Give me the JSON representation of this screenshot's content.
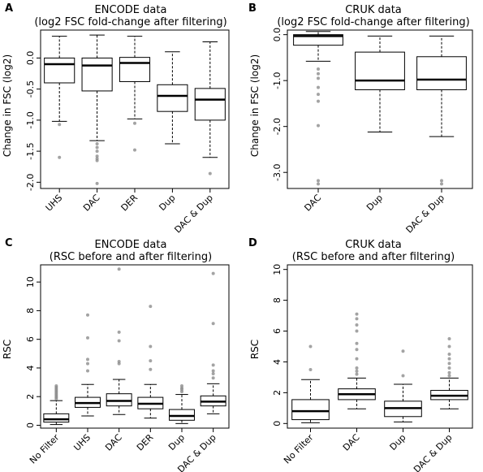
{
  "chart_data": [
    {
      "panel": "A",
      "type": "boxplot",
      "title": "ENCODE data",
      "subtitle": "(log2 FSC fold-change after filtering)",
      "ylabel": "Change in FSC (log2)",
      "xlabel": "",
      "ylim": [
        -2.1,
        0.45
      ],
      "yticks": [
        -2.0,
        -1.5,
        -1.0,
        -0.5,
        0.0
      ],
      "ytick_labels": [
        "-2.0",
        "-1.5",
        "-1.0",
        "-0.5",
        "0.0"
      ],
      "categories": [
        "UHS",
        "DAC",
        "DER",
        "Dup",
        "DAC & Dup"
      ],
      "boxes": [
        {
          "whisker_low": -1.02,
          "q1": -0.4,
          "median": -0.1,
          "q3": 0.0,
          "whisker_high": 0.35,
          "outliers": [
            -1.07,
            -1.6
          ]
        },
        {
          "whisker_low": -1.33,
          "q1": -0.53,
          "median": -0.12,
          "q3": 0.0,
          "whisker_high": 0.37,
          "outliers": [
            -1.38,
            -1.44,
            -1.5,
            -1.58,
            -1.62,
            -1.65,
            -2.02
          ]
        },
        {
          "whisker_low": -0.98,
          "q1": -0.38,
          "median": -0.08,
          "q3": 0.01,
          "whisker_high": 0.35,
          "outliers": [
            -1.05,
            -1.48
          ]
        },
        {
          "whisker_low": -1.38,
          "q1": -0.86,
          "median": -0.61,
          "q3": -0.43,
          "whisker_high": 0.1,
          "outliers": []
        },
        {
          "whisker_low": -1.6,
          "q1": -1.0,
          "median": -0.67,
          "q3": -0.49,
          "whisker_high": 0.26,
          "outliers": [
            -1.86
          ]
        }
      ]
    },
    {
      "panel": "B",
      "type": "boxplot",
      "title": "CRUK data",
      "subtitle": "(log2 FSC fold-change after filtering)",
      "ylabel": "Change in FSC (log2)",
      "xlabel": "",
      "ylim": [
        -3.35,
        0.1
      ],
      "yticks": [
        -3.0,
        -2.0,
        -1.0,
        0.0
      ],
      "ytick_labels": [
        "-3.0",
        "-2.0",
        "-1.0",
        "0.0"
      ],
      "categories": [
        "DAC",
        "Dup",
        "DAC & Dup"
      ],
      "boxes": [
        {
          "whisker_low": -0.58,
          "q1": -0.23,
          "median": -0.03,
          "q3": 0.0,
          "whisker_high": 0.07,
          "outliers": [
            -0.75,
            -0.85,
            -0.95,
            -1.15,
            -1.3,
            -1.45,
            -1.98,
            -3.18,
            -3.25
          ]
        },
        {
          "whisker_low": -2.12,
          "q1": -1.2,
          "median": -1.0,
          "q3": -0.38,
          "whisker_high": -0.03,
          "outliers": []
        },
        {
          "whisker_low": -2.22,
          "q1": -1.2,
          "median": -0.98,
          "q3": -0.48,
          "whisker_high": -0.03,
          "outliers": [
            -3.18,
            -3.25
          ]
        }
      ]
    },
    {
      "panel": "C",
      "type": "boxplot",
      "title": "ENCODE data",
      "subtitle": "(RSC before and after filtering)",
      "ylabel": "RSC",
      "xlabel": "",
      "ylim": [
        -0.2,
        11.2
      ],
      "yticks": [
        0,
        2,
        4,
        6,
        8,
        10
      ],
      "ytick_labels": [
        "0",
        "2",
        "4",
        "6",
        "8",
        "10"
      ],
      "categories": [
        "No Filter",
        "UHS",
        "DAC",
        "DER",
        "Dup",
        "DAC & Dup"
      ],
      "boxes": [
        {
          "whisker_low": 0.05,
          "q1": 0.22,
          "median": 0.42,
          "q3": 0.8,
          "whisker_high": 1.72,
          "outliers": [
            1.85,
            1.95,
            2.05,
            2.15,
            2.25,
            2.35,
            2.45,
            2.55,
            2.65,
            2.75
          ]
        },
        {
          "whisker_low": 0.65,
          "q1": 1.25,
          "median": 1.55,
          "q3": 1.95,
          "whisker_high": 2.85,
          "outliers": [
            3.8,
            4.3,
            4.6,
            6.1,
            7.7
          ]
        },
        {
          "whisker_low": 0.75,
          "q1": 1.35,
          "median": 1.7,
          "q3": 2.2,
          "whisker_high": 3.2,
          "outliers": [
            4.3,
            4.45,
            5.9,
            6.5,
            10.9
          ]
        },
        {
          "whisker_low": 0.5,
          "q1": 1.15,
          "median": 1.5,
          "q3": 1.95,
          "whisker_high": 2.85,
          "outliers": [
            3.9,
            4.5,
            5.5,
            8.3
          ]
        },
        {
          "whisker_low": 0.12,
          "q1": 0.35,
          "median": 0.65,
          "q3": 1.1,
          "whisker_high": 2.15,
          "outliers": [
            2.35,
            2.5,
            2.6,
            2.75
          ]
        },
        {
          "whisker_low": 0.8,
          "q1": 1.35,
          "median": 1.65,
          "q3": 2.05,
          "whisker_high": 2.9,
          "outliers": [
            3.3,
            3.6,
            3.8,
            4.2,
            7.1,
            10.6
          ]
        }
      ]
    },
    {
      "panel": "D",
      "type": "boxplot",
      "title": "CRUK data",
      "subtitle": "(RSC before and after filtering)",
      "ylabel": "RSC",
      "xlabel": "",
      "ylim": [
        -0.3,
        10.3
      ],
      "yticks": [
        0,
        2,
        4,
        6,
        8,
        10
      ],
      "ytick_labels": [
        "0",
        "2",
        "4",
        "6",
        "8",
        "10"
      ],
      "categories": [
        "No Filter",
        "DAC",
        "Dup",
        "DAC & Dup"
      ],
      "boxes": [
        {
          "whisker_low": 0.05,
          "q1": 0.25,
          "median": 0.8,
          "q3": 1.55,
          "whisker_high": 2.85,
          "outliers": [
            3.5,
            5.0
          ]
        },
        {
          "whisker_low": 0.95,
          "q1": 1.55,
          "median": 1.9,
          "q3": 2.25,
          "whisker_high": 2.95,
          "outliers": [
            3.2,
            3.4,
            3.6,
            4.2,
            4.8,
            5.2,
            6.0,
            6.4,
            6.8,
            7.1
          ]
        },
        {
          "whisker_low": 0.1,
          "q1": 0.45,
          "median": 1.0,
          "q3": 1.45,
          "whisker_high": 2.55,
          "outliers": [
            3.1,
            4.7
          ]
        },
        {
          "whisker_low": 0.95,
          "q1": 1.55,
          "median": 1.8,
          "q3": 2.15,
          "whisker_high": 2.95,
          "outliers": [
            3.1,
            3.3,
            3.6,
            3.9,
            4.2,
            4.5,
            5.0,
            5.5
          ]
        }
      ]
    }
  ]
}
